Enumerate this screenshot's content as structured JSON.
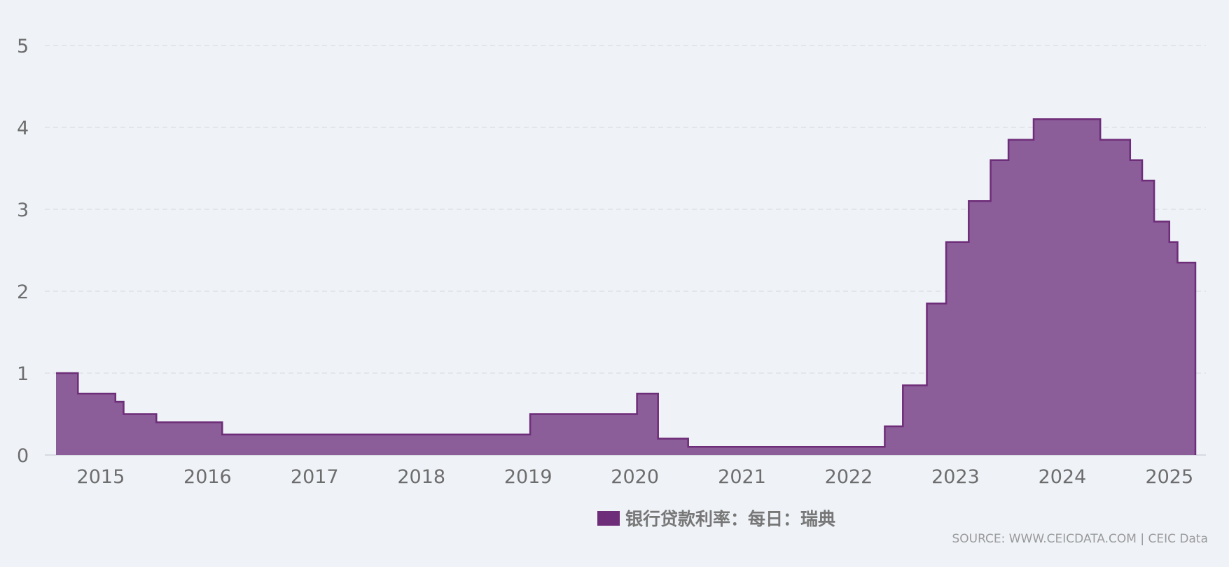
{
  "colors": {
    "series": "#6e2d78",
    "fill": "#8b5d99",
    "grid": "#d9dde3",
    "tick": "#6d6d6d"
  },
  "legend": {
    "label": "银行贷款利率：每日：瑞典"
  },
  "source": "SOURCE: WWW.CEICDATA.COM | CEIC Data",
  "chart_data": {
    "type": "area",
    "step": true,
    "ylim": [
      0,
      5
    ],
    "yticks": [
      0,
      1,
      2,
      3,
      4,
      5
    ],
    "xlim": [
      "2014-08-01",
      "2025-03-31"
    ],
    "xticks": [
      "2015-01-01",
      "2016-01-01",
      "2017-01-01",
      "2018-01-01",
      "2019-01-01",
      "2020-01-01",
      "2021-01-01",
      "2022-01-01",
      "2023-01-01",
      "2024-01-01",
      "2025-01-01"
    ],
    "xtick_labels": [
      "2015",
      "2016",
      "2017",
      "2018",
      "2019",
      "2020",
      "2021",
      "2022",
      "2023",
      "2024",
      "2025"
    ],
    "grid": true,
    "legend_position": "bottom-center",
    "series": [
      {
        "name": "银行贷款利率：每日：瑞典",
        "points": [
          {
            "date": "2014-08-01",
            "value": 1.0
          },
          {
            "date": "2014-10-15",
            "value": 0.75
          },
          {
            "date": "2015-02-20",
            "value": 0.65
          },
          {
            "date": "2015-03-20",
            "value": 0.5
          },
          {
            "date": "2015-07-10",
            "value": 0.4
          },
          {
            "date": "2016-02-20",
            "value": 0.25
          },
          {
            "date": "2019-01-08",
            "value": 0.5
          },
          {
            "date": "2020-01-08",
            "value": 0.75
          },
          {
            "date": "2020-03-20",
            "value": 0.2
          },
          {
            "date": "2020-07-01",
            "value": 0.1
          },
          {
            "date": "2022-05-04",
            "value": 0.35
          },
          {
            "date": "2022-07-05",
            "value": 0.85
          },
          {
            "date": "2022-09-25",
            "value": 1.85
          },
          {
            "date": "2022-11-30",
            "value": 2.6
          },
          {
            "date": "2023-02-15",
            "value": 3.1
          },
          {
            "date": "2023-05-01",
            "value": 3.6
          },
          {
            "date": "2023-07-01",
            "value": 3.85
          },
          {
            "date": "2023-09-25",
            "value": 4.1
          },
          {
            "date": "2024-05-10",
            "value": 3.85
          },
          {
            "date": "2024-08-20",
            "value": 3.6
          },
          {
            "date": "2024-09-30",
            "value": 3.35
          },
          {
            "date": "2024-11-10",
            "value": 2.85
          },
          {
            "date": "2025-01-01",
            "value": 2.6
          },
          {
            "date": "2025-01-29",
            "value": 2.35
          },
          {
            "date": "2025-03-31",
            "value": 2.35
          }
        ]
      }
    ]
  }
}
